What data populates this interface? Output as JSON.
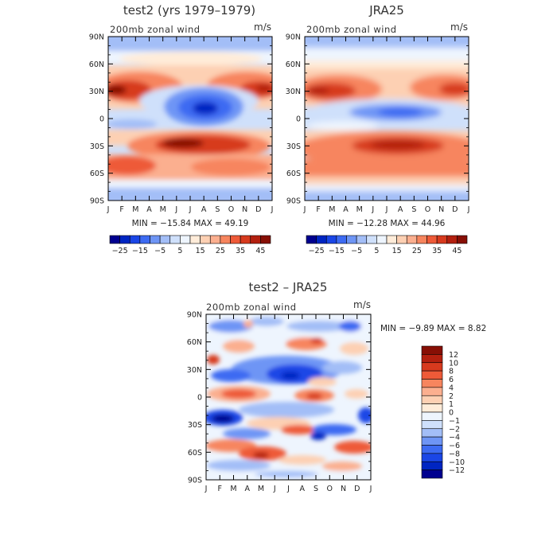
{
  "chart_data": [
    {
      "type": "heatmap",
      "title": "test2 (yrs 1979–1979)",
      "variable": "200mb  zonal  wind",
      "units": "m/s",
      "stats": "MIN = −15.84  MAX =   49.19",
      "x_ticks": [
        "J",
        "F",
        "M",
        "A",
        "M",
        "J",
        "J",
        "A",
        "S",
        "O",
        "N",
        "D",
        "J"
      ],
      "y_ticks": [
        "90N",
        "60N",
        "30N",
        "0",
        "30S",
        "60S",
        "90S"
      ],
      "xlim": [
        0,
        12
      ],
      "ylim": [
        -90,
        90
      ],
      "colorbar": {
        "orientation": "horizontal",
        "labels": [
          "−25",
          "−15",
          "−5",
          "5",
          "15",
          "25",
          "35",
          "45"
        ],
        "colors": [
          "#00008f",
          "#0025c2",
          "#1a46e6",
          "#3d6bf2",
          "#6e95f5",
          "#a3bef7",
          "#cfe0fb",
          "#eef5fe",
          "#ffecd9",
          "#fdd0b3",
          "#fbaf8f",
          "#f7855e",
          "#ee5a38",
          "#d73a1e",
          "#b3200f",
          "#870f05"
        ]
      },
      "features": [
        {
          "x": 0.5,
          "y": 33,
          "value": 46
        },
        {
          "x": 11.6,
          "y": 33,
          "value": 44
        },
        {
          "x": 6.4,
          "y": -28,
          "value": 44
        },
        {
          "x": 1.0,
          "y": -50,
          "value": 30
        },
        {
          "x": 6.8,
          "y": 8,
          "value": -14
        },
        {
          "x": 1.5,
          "y": -5,
          "value": -3
        }
      ]
    },
    {
      "type": "heatmap",
      "title": "JRA25",
      "variable": "200mb  zonal  wind",
      "units": "m/s",
      "stats": "MIN = −12.28  MAX =   44.96",
      "x_ticks": [
        "J",
        "F",
        "M",
        "A",
        "M",
        "J",
        "J",
        "A",
        "S",
        "O",
        "N",
        "D",
        "J"
      ],
      "y_ticks": [
        "90N",
        "60N",
        "30N",
        "0",
        "30S",
        "60S",
        "90S"
      ],
      "xlim": [
        0,
        12
      ],
      "ylim": [
        -90,
        90
      ],
      "colorbar": {
        "orientation": "horizontal",
        "labels": [
          "−25",
          "−15",
          "−5",
          "5",
          "15",
          "25",
          "35",
          "45"
        ],
        "colors": [
          "#00008f",
          "#0025c2",
          "#1a46e6",
          "#3d6bf2",
          "#6e95f5",
          "#a3bef7",
          "#cfe0fb",
          "#eef5fe",
          "#ffecd9",
          "#fdd0b3",
          "#fbaf8f",
          "#f7855e",
          "#ee5a38",
          "#d73a1e",
          "#b3200f",
          "#870f05"
        ]
      },
      "features": [
        {
          "x": 0.8,
          "y": 33,
          "value": 43
        },
        {
          "x": 11.5,
          "y": 33,
          "value": 41
        },
        {
          "x": 6.5,
          "y": -28,
          "value": 38
        },
        {
          "x": 6.2,
          "y": 5,
          "value": -10
        }
      ]
    },
    {
      "type": "heatmap",
      "title": "test2 – JRA25",
      "variable": "200mb  zonal  wind",
      "units": "m/s",
      "stats": "MIN =   −9.89  MAX =    8.82",
      "x_ticks": [
        "J",
        "F",
        "M",
        "A",
        "M",
        "J",
        "J",
        "A",
        "S",
        "O",
        "N",
        "D",
        "J"
      ],
      "y_ticks": [
        "90N",
        "60N",
        "30N",
        "0",
        "30S",
        "60S",
        "90S"
      ],
      "xlim": [
        0,
        12
      ],
      "ylim": [
        -90,
        90
      ],
      "colorbar": {
        "orientation": "vertical",
        "labels": [
          "12",
          "10",
          "8",
          "6",
          "4",
          "2",
          "1",
          "0",
          "−1",
          "−2",
          "−4",
          "−6",
          "−8",
          "−10",
          "−12"
        ],
        "colors": [
          "#870f05",
          "#b3200f",
          "#d73a1e",
          "#ee5a38",
          "#f7855e",
          "#fbaf8f",
          "#fdd0b3",
          "#ffecd9",
          "#eef5fe",
          "#cfe0fb",
          "#a3bef7",
          "#6e95f5",
          "#3d6bf2",
          "#1a46e6",
          "#0025c2",
          "#00008f"
        ]
      },
      "features": [
        {
          "x": 4.5,
          "y": 20,
          "value": -9
        },
        {
          "x": 0.8,
          "y": -15,
          "value": -8
        },
        {
          "x": 11.6,
          "y": -15,
          "value": -7
        },
        {
          "x": 2.3,
          "y": 0,
          "value": 7
        },
        {
          "x": 4.7,
          "y": -40,
          "value": 7
        },
        {
          "x": 10.0,
          "y": -40,
          "value": 6
        },
        {
          "x": 8.3,
          "y": -7,
          "value": 6
        },
        {
          "x": 0.5,
          "y": -52,
          "value": 7
        }
      ]
    }
  ]
}
